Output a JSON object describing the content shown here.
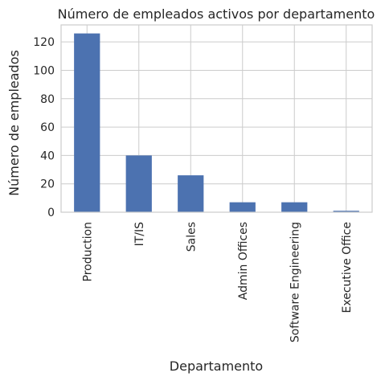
{
  "chart_data": {
    "type": "bar",
    "title": "Número de empleados activos por departamento",
    "xlabel": "Departamento",
    "ylabel": "Número de empleados",
    "categories": [
      "Production",
      "IT/IS",
      "Sales",
      "Admin Offices",
      "Software Engineering",
      "Executive Office"
    ],
    "values": [
      126,
      40,
      26,
      7,
      7,
      1
    ],
    "ylim": [
      0,
      132
    ],
    "yticks": [
      0,
      20,
      40,
      60,
      80,
      100,
      120
    ],
    "grid": true,
    "legend": "none",
    "bar_color": "#4c72b0",
    "grid_color": "#cccccc",
    "text_color": "#262626"
  }
}
